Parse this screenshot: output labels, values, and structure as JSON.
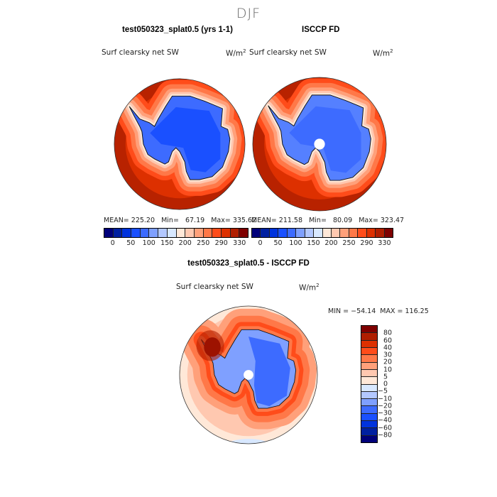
{
  "figure": {
    "title": "DJF"
  },
  "panels": [
    {
      "title": "test050323_splat0.5 (yrs 1-1)",
      "variable": "Surf clearsky net SW",
      "units": "W/m",
      "units_sup": "2",
      "stats": "MEAN= 225.20   Min=   67.19   Max= 335.62"
    },
    {
      "title": "ISCCP FD",
      "variable": "Surf clearsky net SW",
      "units": "W/m",
      "units_sup": "2",
      "stats": "MEAN= 211.58   Min=   80.09   Max= 323.47"
    },
    {
      "title": "test050323_splat0.5 - ISCCP FD",
      "variable": "Surf clearsky net SW",
      "units": "W/m",
      "units_sup": "2",
      "stats": "MIN = −54.14  MAX = 116.25"
    }
  ],
  "colorbar_top": {
    "labels": [
      "0",
      "50",
      "100",
      "150",
      "200",
      "250",
      "290",
      "330"
    ],
    "colors": [
      "#00007a",
      "#0020a0",
      "#0033dd",
      "#1a50ff",
      "#3d6bff",
      "#7fa0ff",
      "#b3c8ff",
      "#d8e8ff",
      "#ffe8d8",
      "#ffc8b0",
      "#ffa07a",
      "#ff7848",
      "#ff4c1a",
      "#dd3000",
      "#b01e00",
      "#7f0000"
    ]
  },
  "colorbar_diff": {
    "labels": [
      "80",
      "60",
      "40",
      "30",
      "20",
      "10",
      "5",
      "0",
      "−5",
      "−10",
      "−20",
      "−30",
      "−40",
      "−60",
      "−80"
    ],
    "colors": [
      "#7f0000",
      "#b01e00",
      "#dd3000",
      "#ff4c1a",
      "#ff7848",
      "#ffa07a",
      "#ffc8b0",
      "#ffe8d8",
      "#d8e8ff",
      "#b3c8ff",
      "#7fa0ff",
      "#3d6bff",
      "#1a50ff",
      "#0033dd",
      "#0020a0",
      "#00007a"
    ]
  }
}
